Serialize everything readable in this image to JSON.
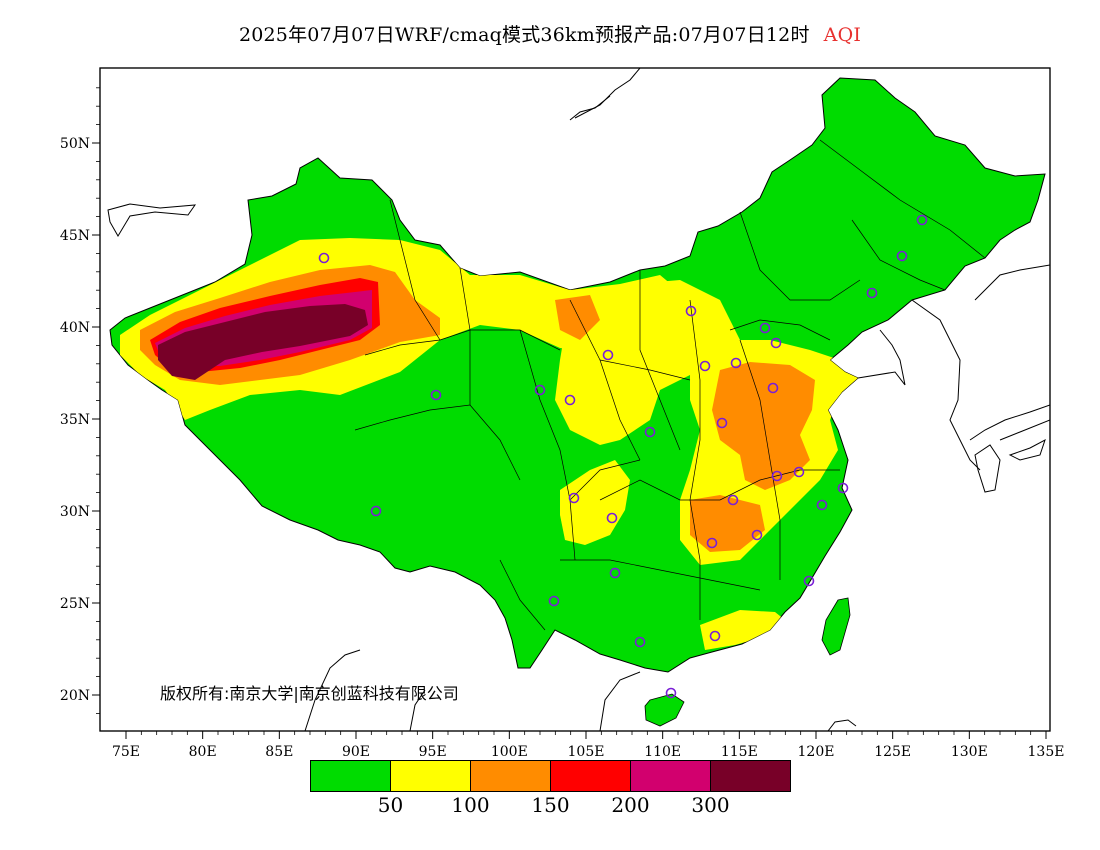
{
  "title": {
    "text": "2025年07月07日WRF/cmaq模式36km预报产品:07月07日12时",
    "variable": "AQI"
  },
  "axes": {
    "lon_ticks": [
      "75E",
      "80E",
      "85E",
      "90E",
      "95E",
      "100E",
      "105E",
      "110E",
      "115E",
      "120E",
      "125E",
      "130E",
      "135E"
    ],
    "lat_ticks": [
      "50N",
      "45N",
      "40N",
      "35N",
      "30N",
      "25N",
      "20N"
    ],
    "lon_range": [
      73,
      135
    ],
    "lat_range": [
      18,
      54
    ]
  },
  "copyright": "版权所有:南京大学|南京创蓝科技有限公司",
  "legend": {
    "colors": [
      "#00dc00",
      "#ffff00",
      "#ff8c00",
      "#ff0000",
      "#d2006e",
      "#780028"
    ],
    "labels": [
      "50",
      "100",
      "150",
      "200",
      "300"
    ]
  },
  "colors": {
    "good": "#00dc00",
    "moderate": "#ffff00",
    "unhealthy_sensitive": "#ff8c00",
    "unhealthy": "#ff0000",
    "very_unhealthy": "#d2006e",
    "hazardous": "#780028",
    "station_marker": "#7a1fd6"
  }
}
